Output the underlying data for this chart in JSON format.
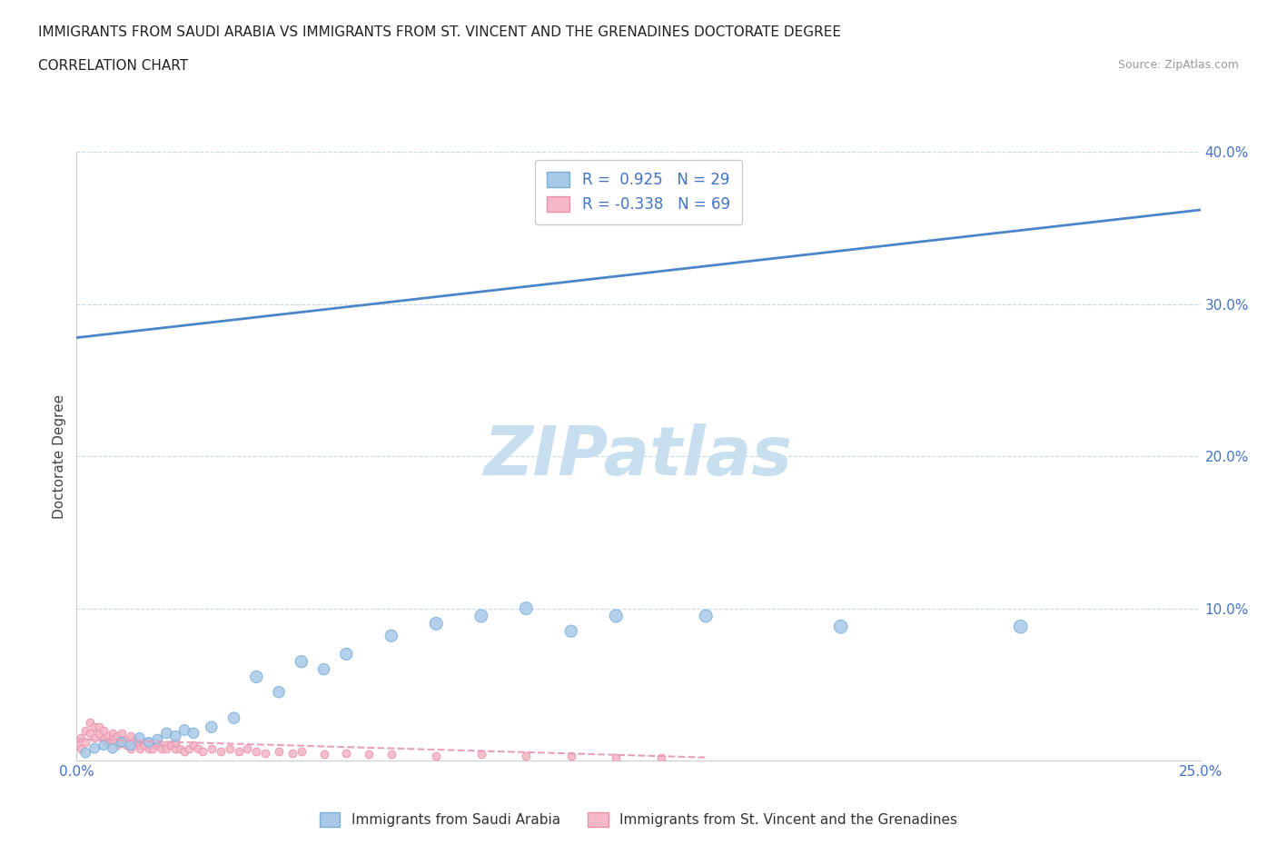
{
  "title_line1": "IMMIGRANTS FROM SAUDI ARABIA VS IMMIGRANTS FROM ST. VINCENT AND THE GRENADINES DOCTORATE DEGREE",
  "title_line2": "CORRELATION CHART",
  "source": "Source: ZipAtlas.com",
  "ylabel": "Doctorate Degree",
  "xlim": [
    0.0,
    0.25
  ],
  "ylim": [
    0.0,
    0.4
  ],
  "xticks": [
    0.0,
    0.025,
    0.05,
    0.075,
    0.1,
    0.125,
    0.15,
    0.175,
    0.2,
    0.225,
    0.25
  ],
  "yticks": [
    0.0,
    0.1,
    0.2,
    0.3,
    0.4
  ],
  "saudi_R": 0.925,
  "saudi_N": 29,
  "stvincent_R": -0.338,
  "stvincent_N": 69,
  "saudi_color": "#a8c8e8",
  "saudi_edge_color": "#7ab0d8",
  "stvincent_color": "#f4b8c8",
  "stvincent_edge_color": "#e890a8",
  "trendline_saudi_color": "#4a86c8",
  "trendline_stvincent_color": "#e8a0b8",
  "grid_color": "#c8d8e8",
  "watermark": "ZIPatlas",
  "watermark_color": "#c8dff0",
  "legend_label1": "Immigrants from Saudi Arabia",
  "legend_label2": "Immigrants from St. Vincent and the Grenadines",
  "saudi_x": [
    0.002,
    0.004,
    0.006,
    0.008,
    0.01,
    0.012,
    0.014,
    0.016,
    0.018,
    0.02,
    0.022,
    0.024,
    0.026,
    0.03,
    0.035,
    0.04,
    0.045,
    0.05,
    0.055,
    0.06,
    0.07,
    0.08,
    0.09,
    0.1,
    0.11,
    0.12,
    0.14,
    0.17,
    0.21
  ],
  "saudi_y": [
    0.005,
    0.008,
    0.01,
    0.008,
    0.012,
    0.01,
    0.015,
    0.012,
    0.014,
    0.018,
    0.016,
    0.02,
    0.018,
    0.022,
    0.028,
    0.055,
    0.045,
    0.065,
    0.06,
    0.07,
    0.082,
    0.09,
    0.095,
    0.1,
    0.085,
    0.095,
    0.095,
    0.088,
    0.088
  ],
  "saudi_sizes": [
    60,
    60,
    60,
    60,
    60,
    60,
    60,
    60,
    60,
    70,
    70,
    70,
    70,
    80,
    80,
    90,
    80,
    90,
    80,
    90,
    90,
    100,
    100,
    100,
    90,
    100,
    100,
    110,
    110
  ],
  "stvincent_x": [
    0.0,
    0.001,
    0.001,
    0.002,
    0.002,
    0.003,
    0.003,
    0.004,
    0.004,
    0.005,
    0.005,
    0.006,
    0.006,
    0.007,
    0.007,
    0.008,
    0.008,
    0.009,
    0.009,
    0.01,
    0.01,
    0.011,
    0.011,
    0.012,
    0.012,
    0.013,
    0.013,
    0.014,
    0.014,
    0.015,
    0.015,
    0.016,
    0.016,
    0.017,
    0.017,
    0.018,
    0.018,
    0.019,
    0.02,
    0.02,
    0.021,
    0.022,
    0.022,
    0.023,
    0.024,
    0.025,
    0.026,
    0.027,
    0.028,
    0.03,
    0.032,
    0.034,
    0.036,
    0.038,
    0.04,
    0.042,
    0.045,
    0.048,
    0.05,
    0.055,
    0.06,
    0.065,
    0.07,
    0.08,
    0.09,
    0.1,
    0.11,
    0.12,
    0.13
  ],
  "stvincent_y": [
    0.01,
    0.008,
    0.015,
    0.012,
    0.02,
    0.018,
    0.025,
    0.022,
    0.015,
    0.018,
    0.022,
    0.014,
    0.02,
    0.016,
    0.012,
    0.018,
    0.014,
    0.01,
    0.016,
    0.012,
    0.018,
    0.014,
    0.01,
    0.016,
    0.008,
    0.012,
    0.014,
    0.01,
    0.008,
    0.012,
    0.01,
    0.008,
    0.012,
    0.01,
    0.008,
    0.01,
    0.012,
    0.008,
    0.01,
    0.008,
    0.01,
    0.008,
    0.012,
    0.008,
    0.006,
    0.008,
    0.01,
    0.008,
    0.006,
    0.008,
    0.006,
    0.008,
    0.006,
    0.008,
    0.006,
    0.005,
    0.006,
    0.005,
    0.006,
    0.004,
    0.005,
    0.004,
    0.004,
    0.003,
    0.004,
    0.003,
    0.003,
    0.002,
    0.002
  ],
  "saudi_trendline_x0": 0.0,
  "saudi_trendline_y0": 0.278,
  "saudi_trendline_x1": 0.25,
  "saudi_trendline_y1": 0.362,
  "sv_trendline_x0": 0.0,
  "sv_trendline_y0": 0.014,
  "sv_trendline_x1": 0.14,
  "sv_trendline_y1": 0.002
}
